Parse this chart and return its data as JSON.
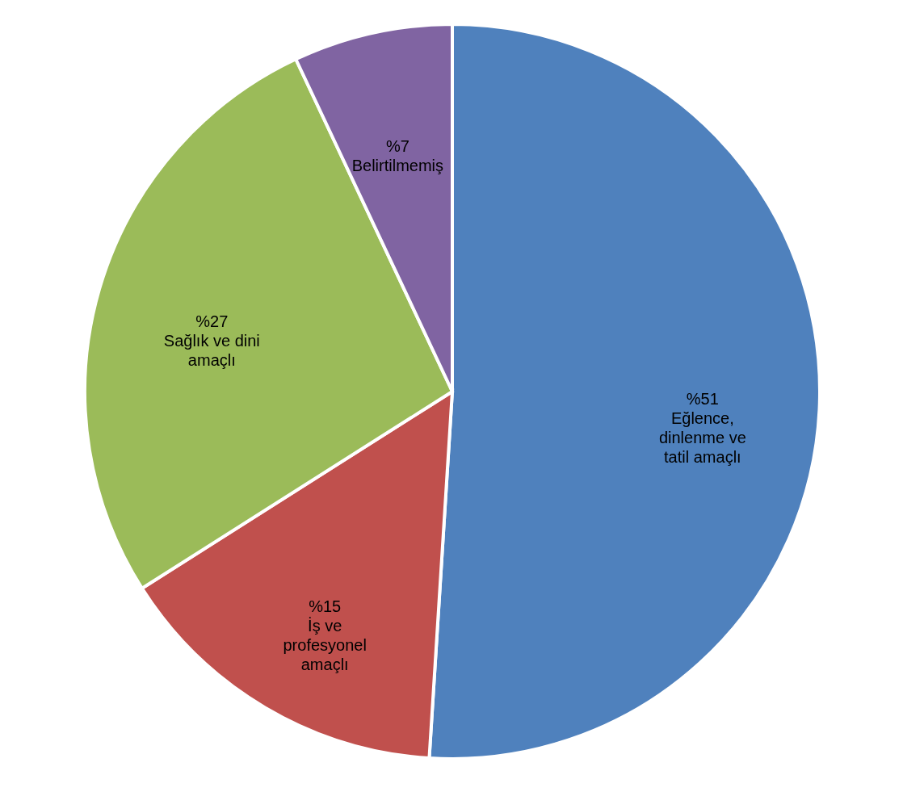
{
  "chart_data": {
    "type": "pie",
    "categories": [
      "Eğlence, dinlenme ve tatil amaçlı",
      "İş ve profesyonel amaçlı",
      "Sağlık ve dini amaçlı",
      "Belirtilmemiş"
    ],
    "values": [
      51,
      15,
      27,
      7
    ],
    "value_labels": [
      "%51",
      "%15",
      "%27",
      "%7"
    ],
    "colors": [
      "#4f81bd",
      "#c0504d",
      "#9bbb59",
      "#8064a2"
    ],
    "legend": false
  }
}
